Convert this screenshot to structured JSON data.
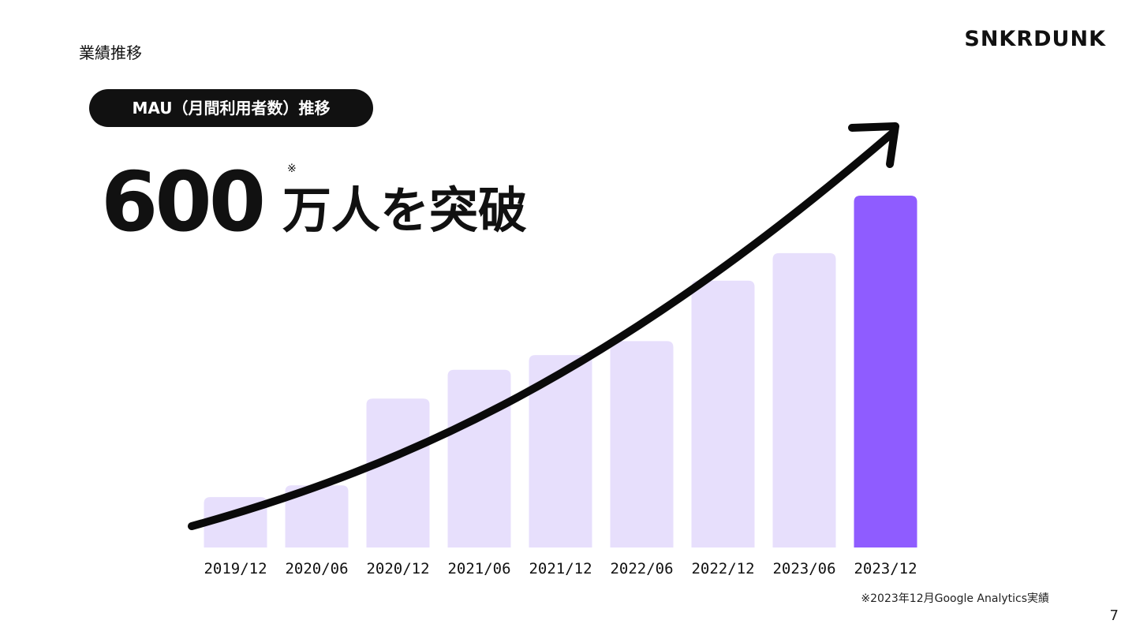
{
  "header": {
    "section": "業績推移",
    "logo": "SNKRDUNK"
  },
  "pill": "MAU（月間利用者数）推移",
  "headline": {
    "number": "600",
    "mark": "※",
    "text": "万人を突破"
  },
  "chart_data": {
    "type": "bar",
    "categories": [
      "2019/12",
      "2020/06",
      "2020/12",
      "2021/06",
      "2021/12",
      "2022/06",
      "2022/12",
      "2023/06",
      "2023/12"
    ],
    "values": [
      86,
      106,
      254,
      303,
      328,
      352,
      455,
      502,
      600
    ],
    "colors": [
      "#e7dffc",
      "#e7dffc",
      "#e7dffc",
      "#e7dffc",
      "#e7dffc",
      "#e7dffc",
      "#e7dffc",
      "#e7dffc",
      "#8f5cff"
    ]
  },
  "footnote": "※2023年12月Google Analytics実績",
  "page_number": "7"
}
